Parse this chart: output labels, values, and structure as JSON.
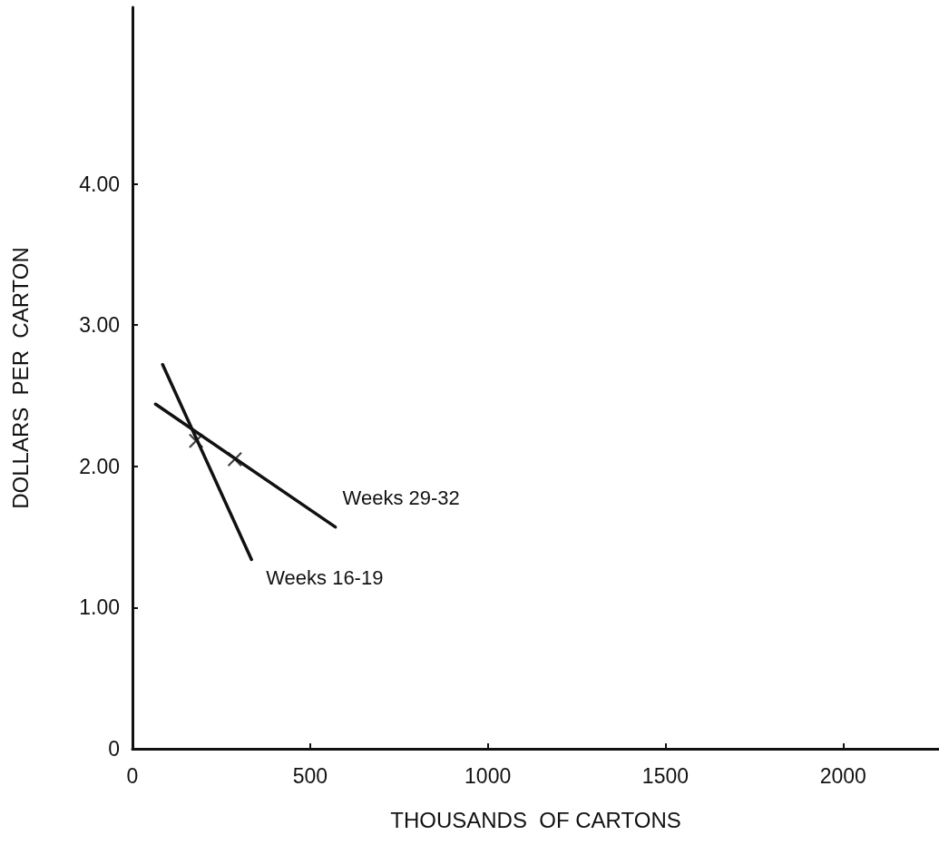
{
  "chart_data": {
    "type": "line",
    "xlabel": "THOUSANDS  OF CARTONS",
    "ylabel": "DOLLARS  PER  CARTON",
    "xlim": [
      0,
      2270
    ],
    "xticks": [
      0,
      500,
      1000,
      1500,
      2000
    ],
    "ylim": [
      0,
      5.25
    ],
    "yticks": [
      0,
      {
        "value": 1,
        "label": "1.00"
      },
      {
        "value": 2,
        "label": "2.00"
      },
      {
        "value": 3,
        "label": "3.00"
      },
      {
        "value": 4,
        "label": "4.00"
      }
    ],
    "grid": false,
    "legend": false,
    "line_style": "solid",
    "series": [
      {
        "name": "Weeks 29-32",
        "color": "#111111",
        "marker": "none",
        "x": [
          65,
          571
        ],
        "values": [
          2.44,
          1.57
        ]
      },
      {
        "name": "Weeks 16-19",
        "color": "#111111",
        "marker": "none",
        "x": [
          85,
          335
        ],
        "values": [
          2.72,
          1.34
        ]
      },
      {
        "type": "scatter",
        "color": "#111111",
        "marker": "cross",
        "x": [
          179,
          288
        ],
        "values": [
          2.18,
          2.05
        ]
      }
    ]
  }
}
